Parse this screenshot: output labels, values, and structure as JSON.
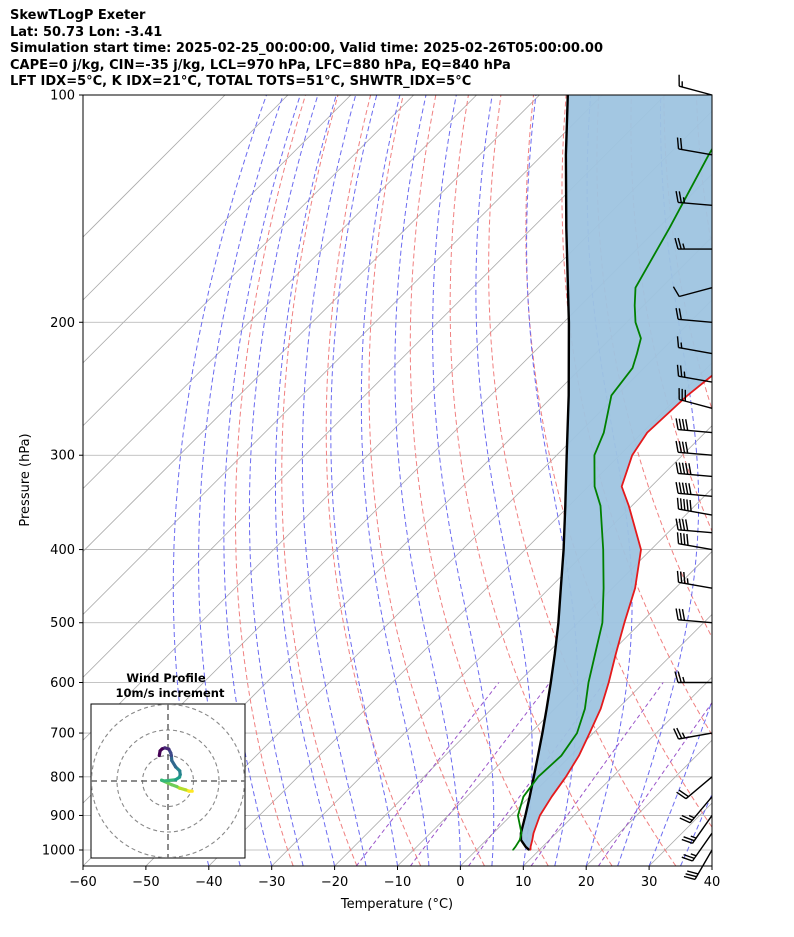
{
  "title_lines": [
    "SkewTLogP Exeter",
    "Lat: 50.73   Lon: -3.41",
    "Simulation start time: 2025-02-25_00:00:00, Valid time: 2025-02-26T05:00:00.00",
    "CAPE=0 j/kg, CIN=-35 j/kg, LCL=970 hPa, LFC=880 hPa, EQ=840 hPa",
    "LFT IDX=5°C, K IDX=21°C, TOTAL TOTS=51°C, SHWTR_IDX=5°C"
  ],
  "chart_data": {
    "type": "line",
    "subtype": "skew-t-log-p",
    "xlabel": "Temperature (°C)",
    "ylabel": "Pressure (hPa)",
    "xlim": [
      -60,
      40
    ],
    "ylim": [
      1050,
      100
    ],
    "y_scale": "log",
    "x_ticks": [
      -60,
      -50,
      -40,
      -30,
      -20,
      -10,
      0,
      10,
      20,
      30,
      40
    ],
    "y_ticks": [
      100,
      200,
      300,
      400,
      500,
      600,
      700,
      800,
      900,
      1000
    ],
    "grid": true,
    "colors": {
      "temperature": "#e41a1c",
      "dewpoint": "#008000",
      "parcel": "#000000",
      "fill": "#9ec4e0",
      "dry_adiabats": "#f08080",
      "moist_adiabats": "#6b6bf0",
      "mixing_ratio": "#9a54c9",
      "isotherms": "#aaaaaa"
    },
    "series": [
      {
        "key": "temperature",
        "pressure": [
          1000,
          990,
          970,
          950,
          900,
          850,
          800,
          750,
          700,
          650,
          600,
          550,
          500,
          450,
          400,
          350,
          330,
          300,
          280,
          250,
          220,
          200,
          190,
          180,
          170,
          150,
          140,
          130,
          120,
          110,
          100
        ],
        "values": [
          8.6,
          8.1,
          7.3,
          6.4,
          4.6,
          3.5,
          2.6,
          1.3,
          -0.6,
          -2.7,
          -5.6,
          -9.0,
          -12.6,
          -16.4,
          -21.6,
          -30.5,
          -34.7,
          -38.0,
          -39.2,
          -38.7,
          -37.1,
          -32.3,
          -32.8,
          -34.5,
          -34.5,
          -31.3,
          -31.5,
          -33.5,
          -34.8,
          -36.8,
          -37.8
        ]
      },
      {
        "key": "dewpoint",
        "pressure": [
          1000,
          990,
          970,
          950,
          900,
          850,
          800,
          750,
          700,
          650,
          600,
          550,
          500,
          450,
          400,
          350,
          330,
          300,
          280,
          250,
          230,
          220,
          210,
          200,
          190,
          180,
          150,
          120,
          100
        ],
        "values": [
          5.8,
          5.7,
          5.3,
          4.5,
          1.1,
          -1.0,
          -1.8,
          -1.5,
          -2.6,
          -5.2,
          -8.8,
          -12.3,
          -16.1,
          -21.4,
          -27.6,
          -35.0,
          -39.0,
          -44.0,
          -46.1,
          -50.8,
          -51.8,
          -53.4,
          -55.2,
          -58.6,
          -61.4,
          -64.1,
          -68.2,
          -73.6,
          -77.4
        ]
      },
      {
        "key": "parcel",
        "pressure": [
          1000,
          990,
          970,
          950,
          900,
          850,
          800,
          750,
          700,
          650,
          600,
          550,
          500,
          450,
          400,
          350,
          300,
          250,
          200,
          150,
          120,
          100
        ],
        "values": [
          8.4,
          7.3,
          5.5,
          4.4,
          2.3,
          0.0,
          -2.5,
          -5.2,
          -8.1,
          -11.3,
          -14.8,
          -18.7,
          -23.1,
          -28.2,
          -33.9,
          -40.6,
          -48.4,
          -57.6,
          -69.2,
          -84.6,
          -96.3,
          -105.5
        ]
      }
    ],
    "wind_barbs": {
      "pressure": [
        100,
        120,
        140,
        160,
        180,
        200,
        220,
        240,
        260,
        280,
        300,
        320,
        340,
        360,
        380,
        400,
        450,
        500,
        600,
        700,
        800,
        850,
        900,
        950,
        1000
      ],
      "speed_kt": [
        15,
        20,
        25,
        25,
        10,
        20,
        15,
        25,
        30,
        40,
        40,
        50,
        50,
        50,
        40,
        40,
        35,
        30,
        25,
        25,
        20,
        25,
        25,
        25,
        30
      ],
      "direction_deg": [
        285,
        280,
        275,
        270,
        255,
        275,
        280,
        280,
        285,
        275,
        275,
        275,
        275,
        280,
        275,
        280,
        280,
        275,
        270,
        260,
        230,
        220,
        215,
        215,
        210
      ]
    },
    "hodograph": {
      "title": "Wind Profile",
      "subtitle": "10m/s increment",
      "ring_increment_ms": 10,
      "u": [
        9.5,
        8.3,
        7.0,
        4.5,
        3.5,
        1.5,
        -2.5,
        -1.5,
        3.0,
        4.5,
        4.8,
        4.6,
        3.0,
        1.5,
        1.3,
        1.1,
        0.3,
        -1.2,
        -2.3,
        -3.1,
        -3.4
      ],
      "v": [
        -4.0,
        -4.0,
        -3.5,
        -2.8,
        -2.2,
        -1.5,
        0.3,
        0.0,
        0.5,
        1.5,
        2.5,
        4.0,
        5.5,
        8.0,
        10.0,
        11.0,
        12.5,
        13.0,
        12.6,
        11.8,
        10.0
      ]
    }
  }
}
